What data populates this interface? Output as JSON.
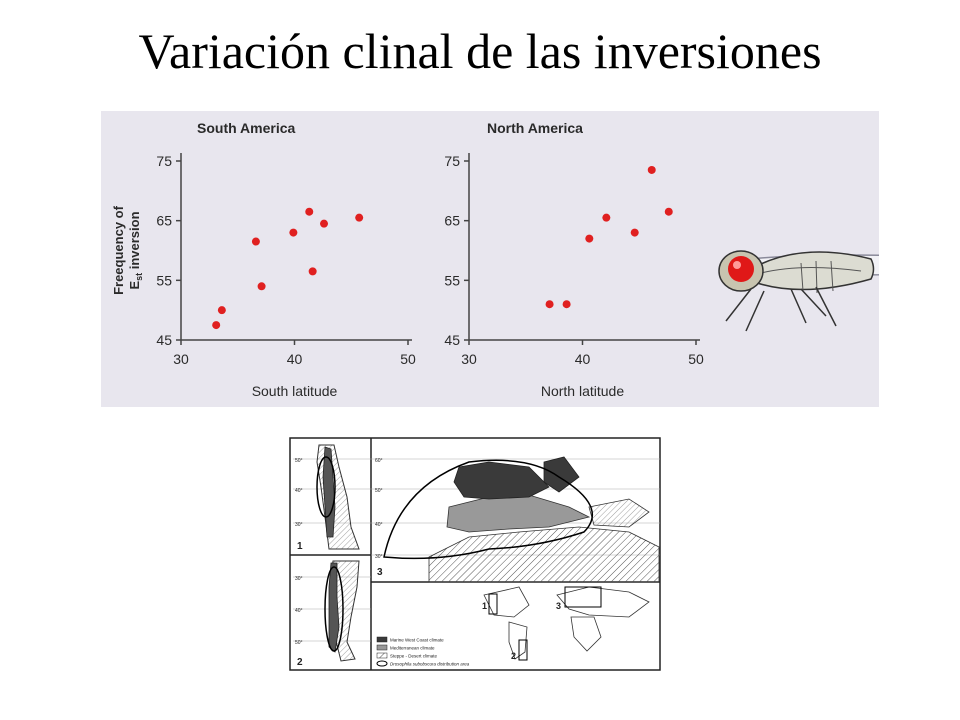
{
  "slide": {
    "title": "Variación clinal de las inversiones"
  },
  "chart_data": [
    {
      "type": "scatter",
      "title": "South America",
      "xlabel": "South latitude",
      "ylabel_line1": "Freequency of",
      "ylabel_line2": "E",
      "ylabel_sub": "st",
      "ylabel_line2_suffix": " inversion",
      "xlim": [
        30,
        50
      ],
      "ylim": [
        45,
        75
      ],
      "xticks": [
        "30",
        "40",
        "50"
      ],
      "yticks": [
        "75",
        "65",
        "55",
        "45"
      ],
      "points": [
        {
          "x": 33.1,
          "y": 47.5
        },
        {
          "x": 33.6,
          "y": 50.0
        },
        {
          "x": 36.6,
          "y": 61.5
        },
        {
          "x": 37.1,
          "y": 54.0
        },
        {
          "x": 39.9,
          "y": 63.0
        },
        {
          "x": 41.3,
          "y": 66.5
        },
        {
          "x": 41.6,
          "y": 56.5
        },
        {
          "x": 42.6,
          "y": 64.5
        },
        {
          "x": 45.7,
          "y": 65.5
        }
      ],
      "color": "#e02020"
    },
    {
      "type": "scatter",
      "title": "North America",
      "xlabel": "North latitude",
      "xlim": [
        30,
        50
      ],
      "ylim": [
        45,
        75
      ],
      "xticks": [
        "30",
        "40",
        "50"
      ],
      "yticks": [
        "75",
        "65",
        "55",
        "45"
      ],
      "points": [
        {
          "x": 37.1,
          "y": 51.0
        },
        {
          "x": 38.6,
          "y": 51.0
        },
        {
          "x": 40.6,
          "y": 62.0
        },
        {
          "x": 42.1,
          "y": 65.5
        },
        {
          "x": 44.6,
          "y": 63.0
        },
        {
          "x": 46.1,
          "y": 73.5
        },
        {
          "x": 47.6,
          "y": 66.5
        }
      ],
      "color": "#e02020"
    }
  ],
  "map": {
    "legend": [
      "Marine West Coast climate",
      "Mediterranean climate",
      "Steppe - Desert climate",
      "Drosophila subobscura distribution area"
    ],
    "panel_labels": [
      "1",
      "2",
      "3"
    ],
    "inset_labels": [
      "1",
      "2",
      "3"
    ],
    "lat_labels_left_top": [
      "50°",
      "40°",
      "30°"
    ],
    "lat_labels_left_bottom": [
      "30°",
      "40°",
      "50°"
    ],
    "lat_labels_main": [
      "60°",
      "50°",
      "40°",
      "30°"
    ]
  }
}
